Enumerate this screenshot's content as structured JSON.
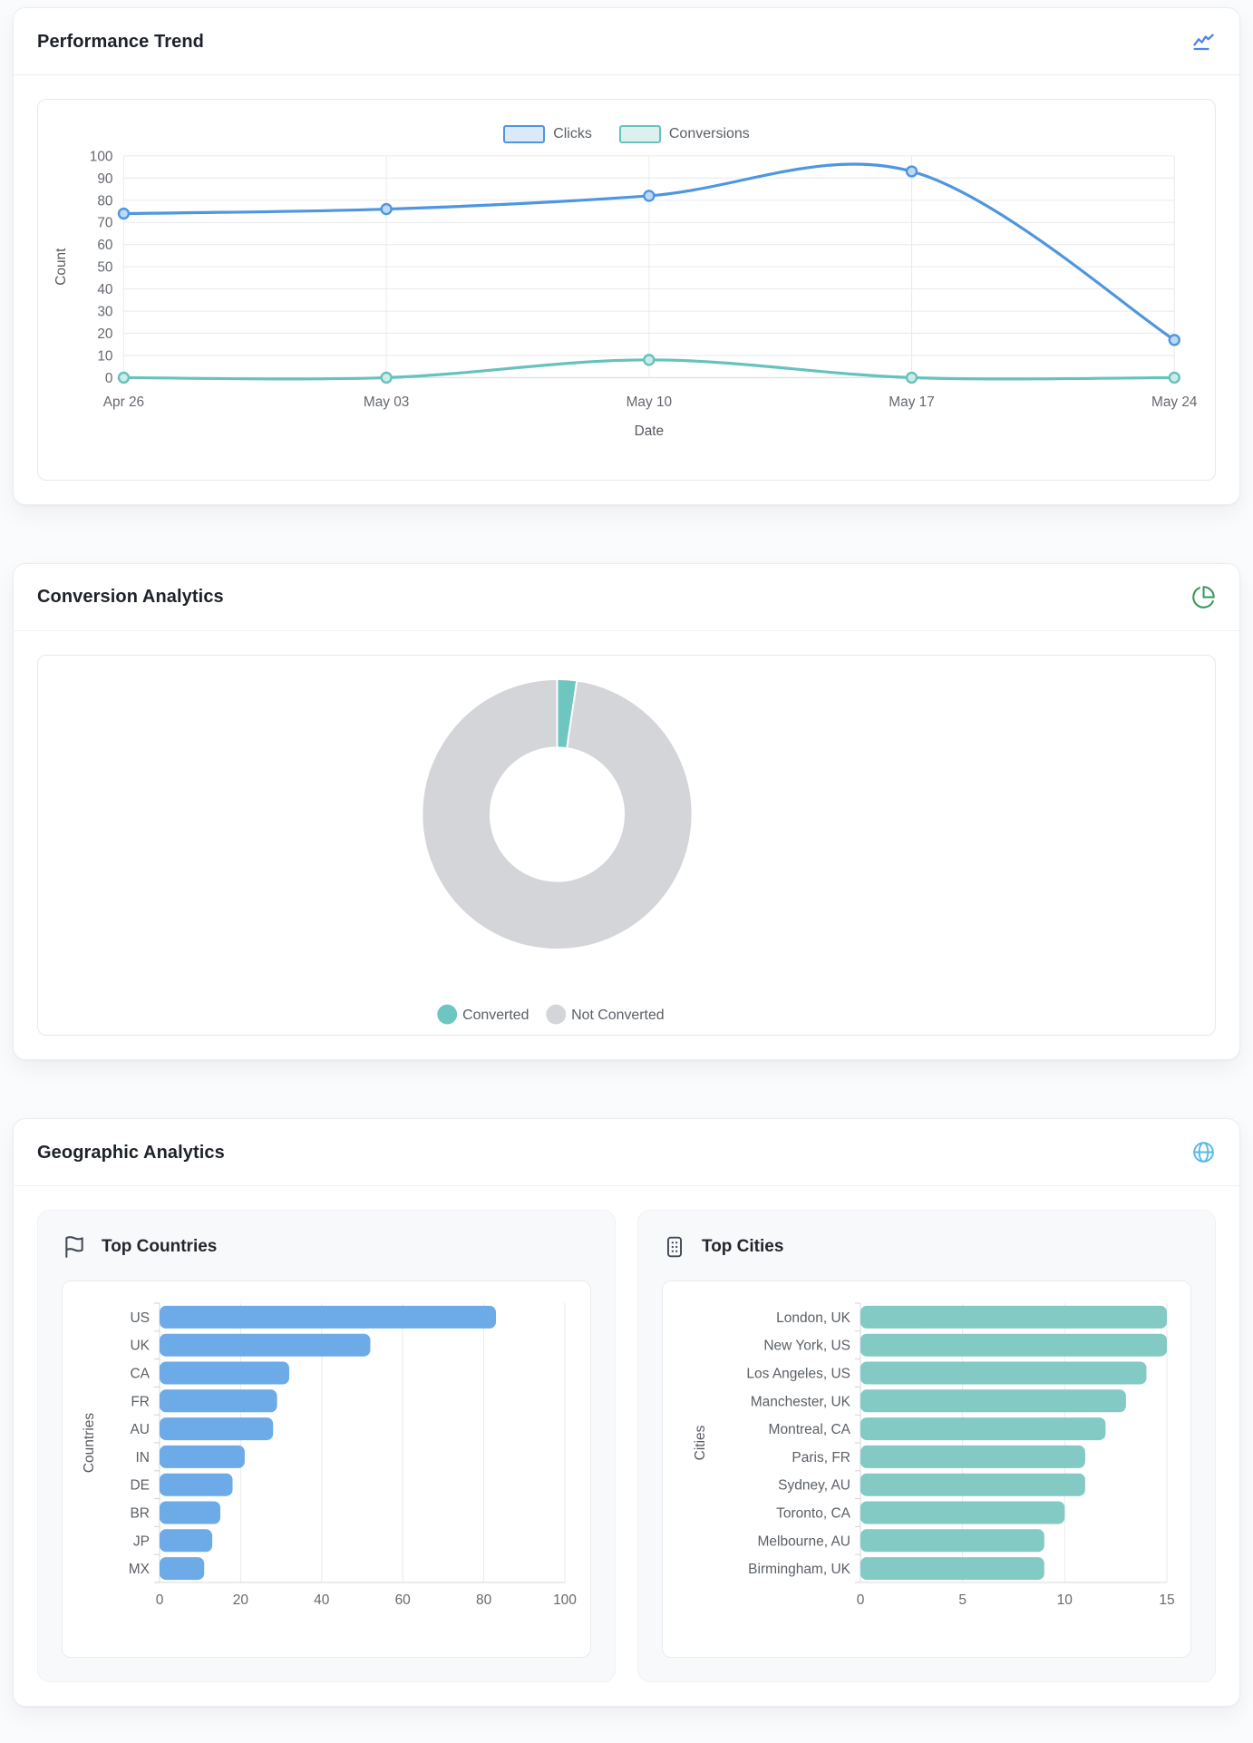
{
  "performance_card": {
    "title": "Performance Trend",
    "icon": "line-chart-icon"
  },
  "conversion_card": {
    "title": "Conversion Analytics",
    "icon": "pie-chart-icon"
  },
  "geographic_card": {
    "title": "Geographic Analytics",
    "icon": "globe-icon",
    "countries_panel": {
      "title": "Top Countries",
      "icon": "flag-icon"
    },
    "cities_panel": {
      "title": "Top Cities",
      "icon": "building-icon"
    }
  },
  "colors": {
    "clicks_blue": "#4e96e0",
    "conversions_teal": "#66c2bc",
    "bar_blue": "#6caae8",
    "bar_teal": "#83c9c4",
    "donut_teal": "#6ec6c1",
    "donut_gray": "#d4d5d8",
    "grid": "#e9eaec",
    "axis": "#d7d9dd"
  },
  "chart_data": [
    {
      "type": "line",
      "title": "Performance Trend",
      "x": [
        "Apr 26",
        "May 03",
        "May 10",
        "May 17",
        "May 24"
      ],
      "series": [
        {
          "name": "Clicks",
          "values": [
            74,
            76,
            82,
            93,
            17
          ],
          "color": "#4e96e0",
          "point_fill": "#bcd9f5",
          "legend_fill": "#dbe9f9"
        },
        {
          "name": "Conversions",
          "values": [
            0,
            0,
            8,
            0,
            0
          ],
          "color": "#66c2bc",
          "point_fill": "#cdebe8",
          "legend_fill": "#ddf0ee"
        }
      ],
      "xlabel": "Date",
      "ylabel": "Count",
      "ylim": [
        0,
        100
      ],
      "ytick": 10,
      "grid": true,
      "legend_position": "top",
      "smooth": true
    },
    {
      "type": "pie",
      "title": "Conversion Analytics",
      "donut": true,
      "labels": [
        "Converted",
        "Not Converted"
      ],
      "values": [
        8,
        334
      ],
      "colors": [
        "#6ec6c1",
        "#d4d5d8"
      ],
      "legend_position": "bottom"
    },
    {
      "type": "bar",
      "title": "Top Countries",
      "orientation": "horizontal",
      "categories": [
        "US",
        "UK",
        "CA",
        "FR",
        "AU",
        "IN",
        "DE",
        "BR",
        "JP",
        "MX"
      ],
      "values": [
        83,
        52,
        32,
        29,
        28,
        21,
        18,
        15,
        13,
        11
      ],
      "xlabel": "",
      "ylabel": "Countries",
      "xlim": [
        0,
        100
      ],
      "xticks": [
        0,
        20,
        40,
        60,
        80,
        100
      ],
      "color": "#6caae8",
      "grid": true
    },
    {
      "type": "bar",
      "title": "Top Cities",
      "orientation": "horizontal",
      "categories": [
        "London, UK",
        "New York, US",
        "Los Angeles, US",
        "Manchester, UK",
        "Montreal, CA",
        "Paris, FR",
        "Sydney, AU",
        "Toronto, CA",
        "Melbourne, AU",
        "Birmingham, UK"
      ],
      "values": [
        15,
        15,
        14,
        13,
        12,
        11,
        11,
        10,
        9,
        9
      ],
      "xlabel": "",
      "ylabel": "Cities",
      "xlim": [
        0,
        15
      ],
      "xticks": [
        0,
        5,
        10,
        15
      ],
      "color": "#83c9c4",
      "grid": true
    }
  ]
}
